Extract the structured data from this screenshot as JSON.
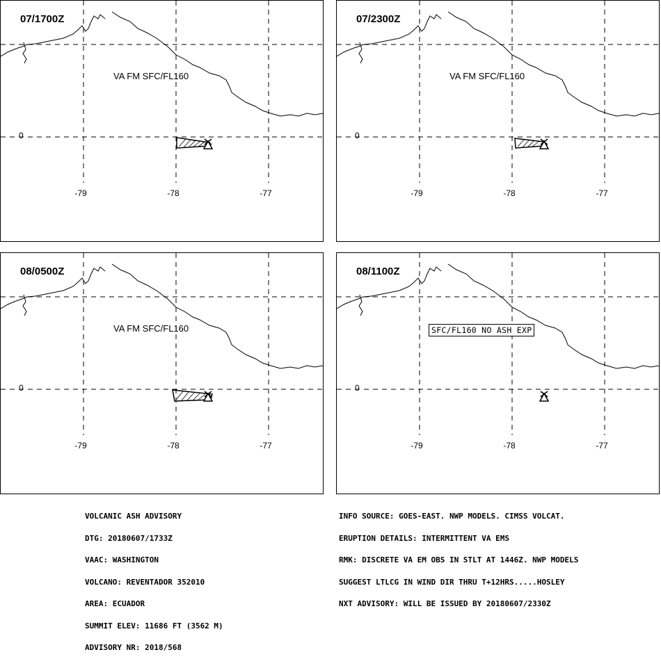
{
  "panels": [
    {
      "time": "07/1700Z",
      "label": "VA FM SFC/FL160",
      "ash": "poly-a"
    },
    {
      "time": "07/2300Z",
      "label": "VA FM SFC/FL160",
      "ash": "poly-b"
    },
    {
      "time": "08/0500Z",
      "label": "VA FM SFC/FL160",
      "ash": "poly-c"
    },
    {
      "time": "08/1100Z",
      "label": "SFC/FL160 NO ASH EXP",
      "ash": "none"
    }
  ],
  "longitudes": [
    "-79",
    "-78",
    "-77"
  ],
  "latitude": "0",
  "volcano_marker": "volcano-triangle-icon",
  "advisory_left": [
    "VOLCANIC ASH ADVISORY",
    "DTG: 20180607/1733Z",
    "VAAC: WASHINGTON",
    "VOLCANO: REVENTADOR 352010",
    "AREA: ECUADOR",
    "SUMMIT ELEV: 11686 FT (3562 M)",
    "ADVISORY NR: 2018/568"
  ],
  "advisory_right": [
    "INFO SOURCE: GOES-EAST. NWP MODELS. CIMSS VOLCAT.",
    "ERUPTION DETAILS: INTERMITTENT VA EMS",
    "RMK: DISCRETE VA EM OBS IN STLT AT 1446Z. NWP MODELS",
    "SUGGEST LTLCG IN WIND DIR THRU T+12HRS.....HOSLEY",
    "NXT ADVISORY: WILL BE ISSUED BY 20180607/2330Z"
  ]
}
